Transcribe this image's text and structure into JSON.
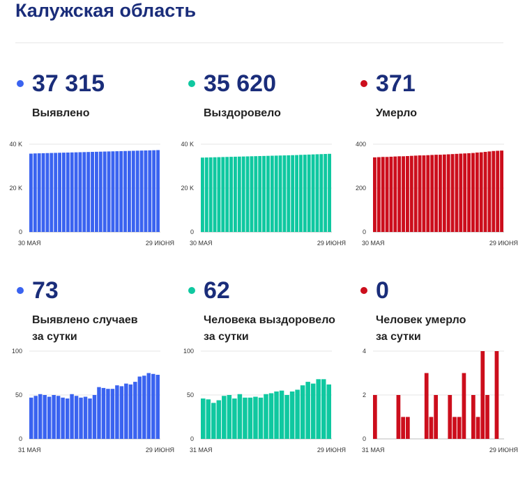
{
  "page": {
    "title": "Калужская область"
  },
  "cards": [
    {
      "value": "37 315",
      "label_lines": [
        "Выявлено"
      ],
      "color": "#3a63f0",
      "chart_data": {
        "type": "bar",
        "ylim": [
          0,
          40000
        ],
        "yticks": [
          {
            "v": 0,
            "t": "0"
          },
          {
            "v": 20000,
            "t": "20 K"
          },
          {
            "v": 40000,
            "t": "40 K"
          }
        ],
        "xlabels": [
          "30 МАЯ",
          "29 ИЮНЯ"
        ],
        "values": [
          35700,
          35800,
          35850,
          35900,
          35950,
          36000,
          36050,
          36100,
          36150,
          36200,
          36250,
          36300,
          36350,
          36400,
          36450,
          36500,
          36550,
          36600,
          36650,
          36700,
          36750,
          36800,
          36850,
          36900,
          36950,
          37000,
          37050,
          37100,
          37150,
          37200,
          37250,
          37315
        ]
      }
    },
    {
      "value": "35 620",
      "label_lines": [
        "Выздоровело"
      ],
      "color": "#0fc8a0",
      "chart_data": {
        "type": "bar",
        "ylim": [
          0,
          40000
        ],
        "yticks": [
          {
            "v": 0,
            "t": "0"
          },
          {
            "v": 20000,
            "t": "20 K"
          },
          {
            "v": 40000,
            "t": "40 K"
          }
        ],
        "xlabels": [
          "30 МАЯ",
          "29 ИЮНЯ"
        ],
        "values": [
          33900,
          33950,
          34000,
          34050,
          34100,
          34150,
          34200,
          34250,
          34300,
          34350,
          34400,
          34450,
          34500,
          34550,
          34600,
          34650,
          34700,
          34750,
          34800,
          34850,
          34900,
          34950,
          35000,
          35050,
          35150,
          35200,
          35280,
          35350,
          35420,
          35480,
          35550,
          35620
        ]
      }
    },
    {
      "value": "371",
      "label_lines": [
        "Умерло"
      ],
      "color": "#cc0e1c",
      "chart_data": {
        "type": "bar",
        "ylim": [
          0,
          400
        ],
        "yticks": [
          {
            "v": 0,
            "t": "0"
          },
          {
            "v": 200,
            "t": "200"
          },
          {
            "v": 400,
            "t": "400"
          }
        ],
        "xlabels": [
          "30 МАЯ",
          "29 ИЮНЯ"
        ],
        "values": [
          340,
          341,
          342,
          342,
          343,
          344,
          345,
          345,
          346,
          347,
          348,
          349,
          349,
          350,
          351,
          352,
          352,
          353,
          354,
          355,
          356,
          357,
          358,
          359,
          360,
          362,
          363,
          365,
          367,
          369,
          370,
          371
        ]
      }
    },
    {
      "value": "73",
      "label_lines": [
        "Выявлено случаев",
        "за сутки"
      ],
      "color": "#3a63f0",
      "chart_data": {
        "type": "bar",
        "ylim": [
          0,
          100
        ],
        "yticks": [
          {
            "v": 0,
            "t": "0"
          },
          {
            "v": 50,
            "t": "50"
          },
          {
            "v": 100,
            "t": "100"
          }
        ],
        "xlabels": [
          "31 МАЯ",
          "29 ИЮНЯ"
        ],
        "values": [
          47,
          49,
          51,
          50,
          48,
          50,
          49,
          47,
          46,
          51,
          49,
          47,
          48,
          46,
          50,
          59,
          58,
          57,
          57,
          61,
          60,
          63,
          62,
          65,
          71,
          72,
          75,
          74,
          73
        ]
      }
    },
    {
      "value": "62",
      "label_lines": [
        "Человека выздоровело",
        "за сутки"
      ],
      "color": "#0fc8a0",
      "chart_data": {
        "type": "bar",
        "ylim": [
          0,
          100
        ],
        "yticks": [
          {
            "v": 0,
            "t": "0"
          },
          {
            "v": 50,
            "t": "50"
          },
          {
            "v": 100,
            "t": "100"
          }
        ],
        "xlabels": [
          "31 МАЯ",
          "29 ИЮНЯ"
        ],
        "values": [
          46,
          45,
          41,
          44,
          49,
          50,
          46,
          51,
          47,
          47,
          48,
          47,
          51,
          52,
          54,
          55,
          50,
          54,
          56,
          61,
          65,
          63,
          68,
          68,
          62
        ]
      }
    },
    {
      "value": "0",
      "label_lines": [
        "Человек умерло",
        "за сутки"
      ],
      "color": "#cc0e1c",
      "chart_data": {
        "type": "bar",
        "ylim": [
          0,
          4
        ],
        "yticks": [
          {
            "v": 0,
            "t": "0"
          },
          {
            "v": 2,
            "t": "2"
          },
          {
            "v": 4,
            "t": "4"
          }
        ],
        "xlabels": [
          "31 МАЯ",
          "29 ИЮНЯ"
        ],
        "values": [
          2,
          0,
          0,
          0,
          0,
          2,
          1,
          1,
          0,
          0,
          0,
          3,
          1,
          2,
          0,
          0,
          2,
          1,
          1,
          3,
          0,
          2,
          1,
          4,
          2,
          0,
          4,
          0
        ]
      }
    }
  ]
}
